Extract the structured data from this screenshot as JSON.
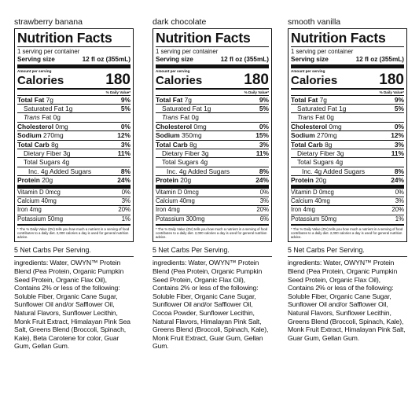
{
  "labels": [
    {
      "flavor": "strawberry banana",
      "title": "Nutrition Facts",
      "servings": "1 serving per container",
      "serving_size_label": "Serving size",
      "serving_size_value": "12 fl oz (355mL)",
      "amount_per_serving": "Amount per serving",
      "calories_label": "Calories",
      "calories": "180",
      "dv_header": "% Daily Value*",
      "nutrients": [
        {
          "name": "Total Fat",
          "amount": "7g",
          "dv": "9%"
        },
        {
          "name": "Saturated Fat",
          "amount": "1g",
          "dv": "5%"
        },
        {
          "name": "Trans",
          "amount": "Fat 0g",
          "dv": ""
        },
        {
          "name": "Cholesterol",
          "amount": "0mg",
          "dv": "0%"
        },
        {
          "name": "Sodium",
          "amount": "270mg",
          "dv": "12%"
        },
        {
          "name": "Total Carb",
          "amount": "8g",
          "dv": "3%"
        },
        {
          "name": "Dietary Fiber",
          "amount": "3g",
          "dv": "11%"
        },
        {
          "name": "Total Sugars",
          "amount": "4g",
          "dv": ""
        },
        {
          "name": "Inc. 4g Added Sugars",
          "amount": "",
          "dv": "8%"
        },
        {
          "name": "Protein",
          "amount": "20g",
          "dv": "24%"
        }
      ],
      "vitamins": [
        {
          "name": "Vitamin D",
          "amount": "0mcg",
          "dv": "0%"
        },
        {
          "name": "Calcium",
          "amount": "40mg",
          "dv": "3%"
        },
        {
          "name": "Iron",
          "amount": "4mg",
          "dv": "20%"
        },
        {
          "name": "Potassium",
          "amount": "50mg",
          "dv": "1%"
        }
      ],
      "footnote": "* The % Daily Value (DV) tells you how much a nutrient in a serving of food contributes to a daily diet. 2,000 calories a day is used for general nutrition advice.",
      "net_carbs": "5 Net Carbs Per Serving.",
      "ingredients": "ingredients: Water, OWYN™ Protein Blend (Pea Protein, Organic Pumpkin Seed Protein, Organic Flax Oil), Contains 2% or less of the following: Soluble Fiber, Organic Cane Sugar, Sunflower Oil and/or Safflower Oil, Natural Flavors, Sunflower Lecithin, Monk Fruit Extract, Himalayan Pink Sea Salt, Greens Blend (Broccoli, Spinach, Kale), Beta Carotene for color, Guar Gum, Gellan Gum."
    },
    {
      "flavor": "dark chocolate",
      "title": "Nutrition Facts",
      "servings": "1 serving per container",
      "serving_size_label": "Serving size",
      "serving_size_value": "12 fl oz (355mL)",
      "amount_per_serving": "Amount per serving",
      "calories_label": "Calories",
      "calories": "180",
      "dv_header": "% Daily Value*",
      "nutrients": [
        {
          "name": "Total Fat",
          "amount": "7g",
          "dv": "9%"
        },
        {
          "name": "Saturated Fat",
          "amount": "1g",
          "dv": "5%"
        },
        {
          "name": "Trans",
          "amount": "Fat 0g",
          "dv": ""
        },
        {
          "name": "Cholesterol",
          "amount": "0mg",
          "dv": "0%"
        },
        {
          "name": "Sodium",
          "amount": "350mg",
          "dv": "15%"
        },
        {
          "name": "Total Carb",
          "amount": "8g",
          "dv": "3%"
        },
        {
          "name": "Dietary Fiber",
          "amount": "3g",
          "dv": "11%"
        },
        {
          "name": "Total Sugars",
          "amount": "4g",
          "dv": ""
        },
        {
          "name": "Inc. 4g Added Sugars",
          "amount": "",
          "dv": "8%"
        },
        {
          "name": "Protein",
          "amount": "20g",
          "dv": "24%"
        }
      ],
      "vitamins": [
        {
          "name": "Vitamin D",
          "amount": "0mcg",
          "dv": "0%"
        },
        {
          "name": "Calcium",
          "amount": "40mg",
          "dv": "3%"
        },
        {
          "name": "Iron",
          "amount": "4mg",
          "dv": "20%"
        },
        {
          "name": "Potassium",
          "amount": "300mg",
          "dv": "6%"
        }
      ],
      "footnote": "* The % Daily Value (DV) tells you how much a nutrient in a serving of food contributes to a daily diet. 2,000 calories a day is used for general nutrition advice.",
      "net_carbs": "5 Net Carbs Per Serving.",
      "ingredients": "ingredients: Water, OWYN™ Protein Blend (Pea Protein, Organic Pumpkin Seed Protein, Organic Flax Oil), Contains 2% or less of the following: Soluble Fiber, Organic Cane Sugar, Sunflower Oil and/or Safflower Oil, Cocoa Powder, Sunflower Lecithin, Natural Flavors, Himalayan Pink Salt, Greens Blend (Broccoli, Spinach, Kale), Monk Fruit Extract, Guar Gum, Gellan Gum."
    },
    {
      "flavor": "smooth vanilla",
      "title": "Nutrition Facts",
      "servings": "1 serving per container",
      "serving_size_label": "Serving size",
      "serving_size_value": "12 fl oz (355mL)",
      "amount_per_serving": "Amount per serving",
      "calories_label": "Calories",
      "calories": "180",
      "dv_header": "% Daily Value*",
      "nutrients": [
        {
          "name": "Total Fat",
          "amount": "7g",
          "dv": "9%"
        },
        {
          "name": "Saturated Fat",
          "amount": "1g",
          "dv": "5%"
        },
        {
          "name": "Trans",
          "amount": "Fat 0g",
          "dv": ""
        },
        {
          "name": "Cholesterol",
          "amount": "0mg",
          "dv": "0%"
        },
        {
          "name": "Sodium",
          "amount": "270mg",
          "dv": "12%"
        },
        {
          "name": "Total Carb",
          "amount": "8g",
          "dv": "3%"
        },
        {
          "name": "Dietary Fiber",
          "amount": "3g",
          "dv": "11%"
        },
        {
          "name": "Total Sugars",
          "amount": "4g",
          "dv": ""
        },
        {
          "name": "Inc. 4g Added Sugars",
          "amount": "",
          "dv": "8%"
        },
        {
          "name": "Protein",
          "amount": "20g",
          "dv": "24%"
        }
      ],
      "vitamins": [
        {
          "name": "Vitamin D",
          "amount": "0mcg",
          "dv": "0%"
        },
        {
          "name": "Calcium",
          "amount": "40mg",
          "dv": "3%"
        },
        {
          "name": "Iron",
          "amount": "4mg",
          "dv": "20%"
        },
        {
          "name": "Potassium",
          "amount": "50mg",
          "dv": "1%"
        }
      ],
      "footnote": "* The % Daily Value (DV) tells you how much a nutrient in a serving of food contributes to a daily diet. 2,000 calories a day is used for general nutrition advice.",
      "net_carbs": "5 Net Carbs Per Serving.",
      "ingredients": "ingredients: Water, OWYN™ Protein Blend (Pea Protein, Organic Pumpkin Seed Protein, Organic Flax Oil), Contains 2% or less of the following: Soluble Fiber, Organic Cane Sugar, Sunflower Oil and/or Safflower Oil, Natural Flavors, Sunflower Lecithin, Greens Blend (Broccoli, Spinach, Kale), Monk Fruit Extract, Himalayan Pink Salt, Guar Gum, Gellan Gum."
    }
  ]
}
